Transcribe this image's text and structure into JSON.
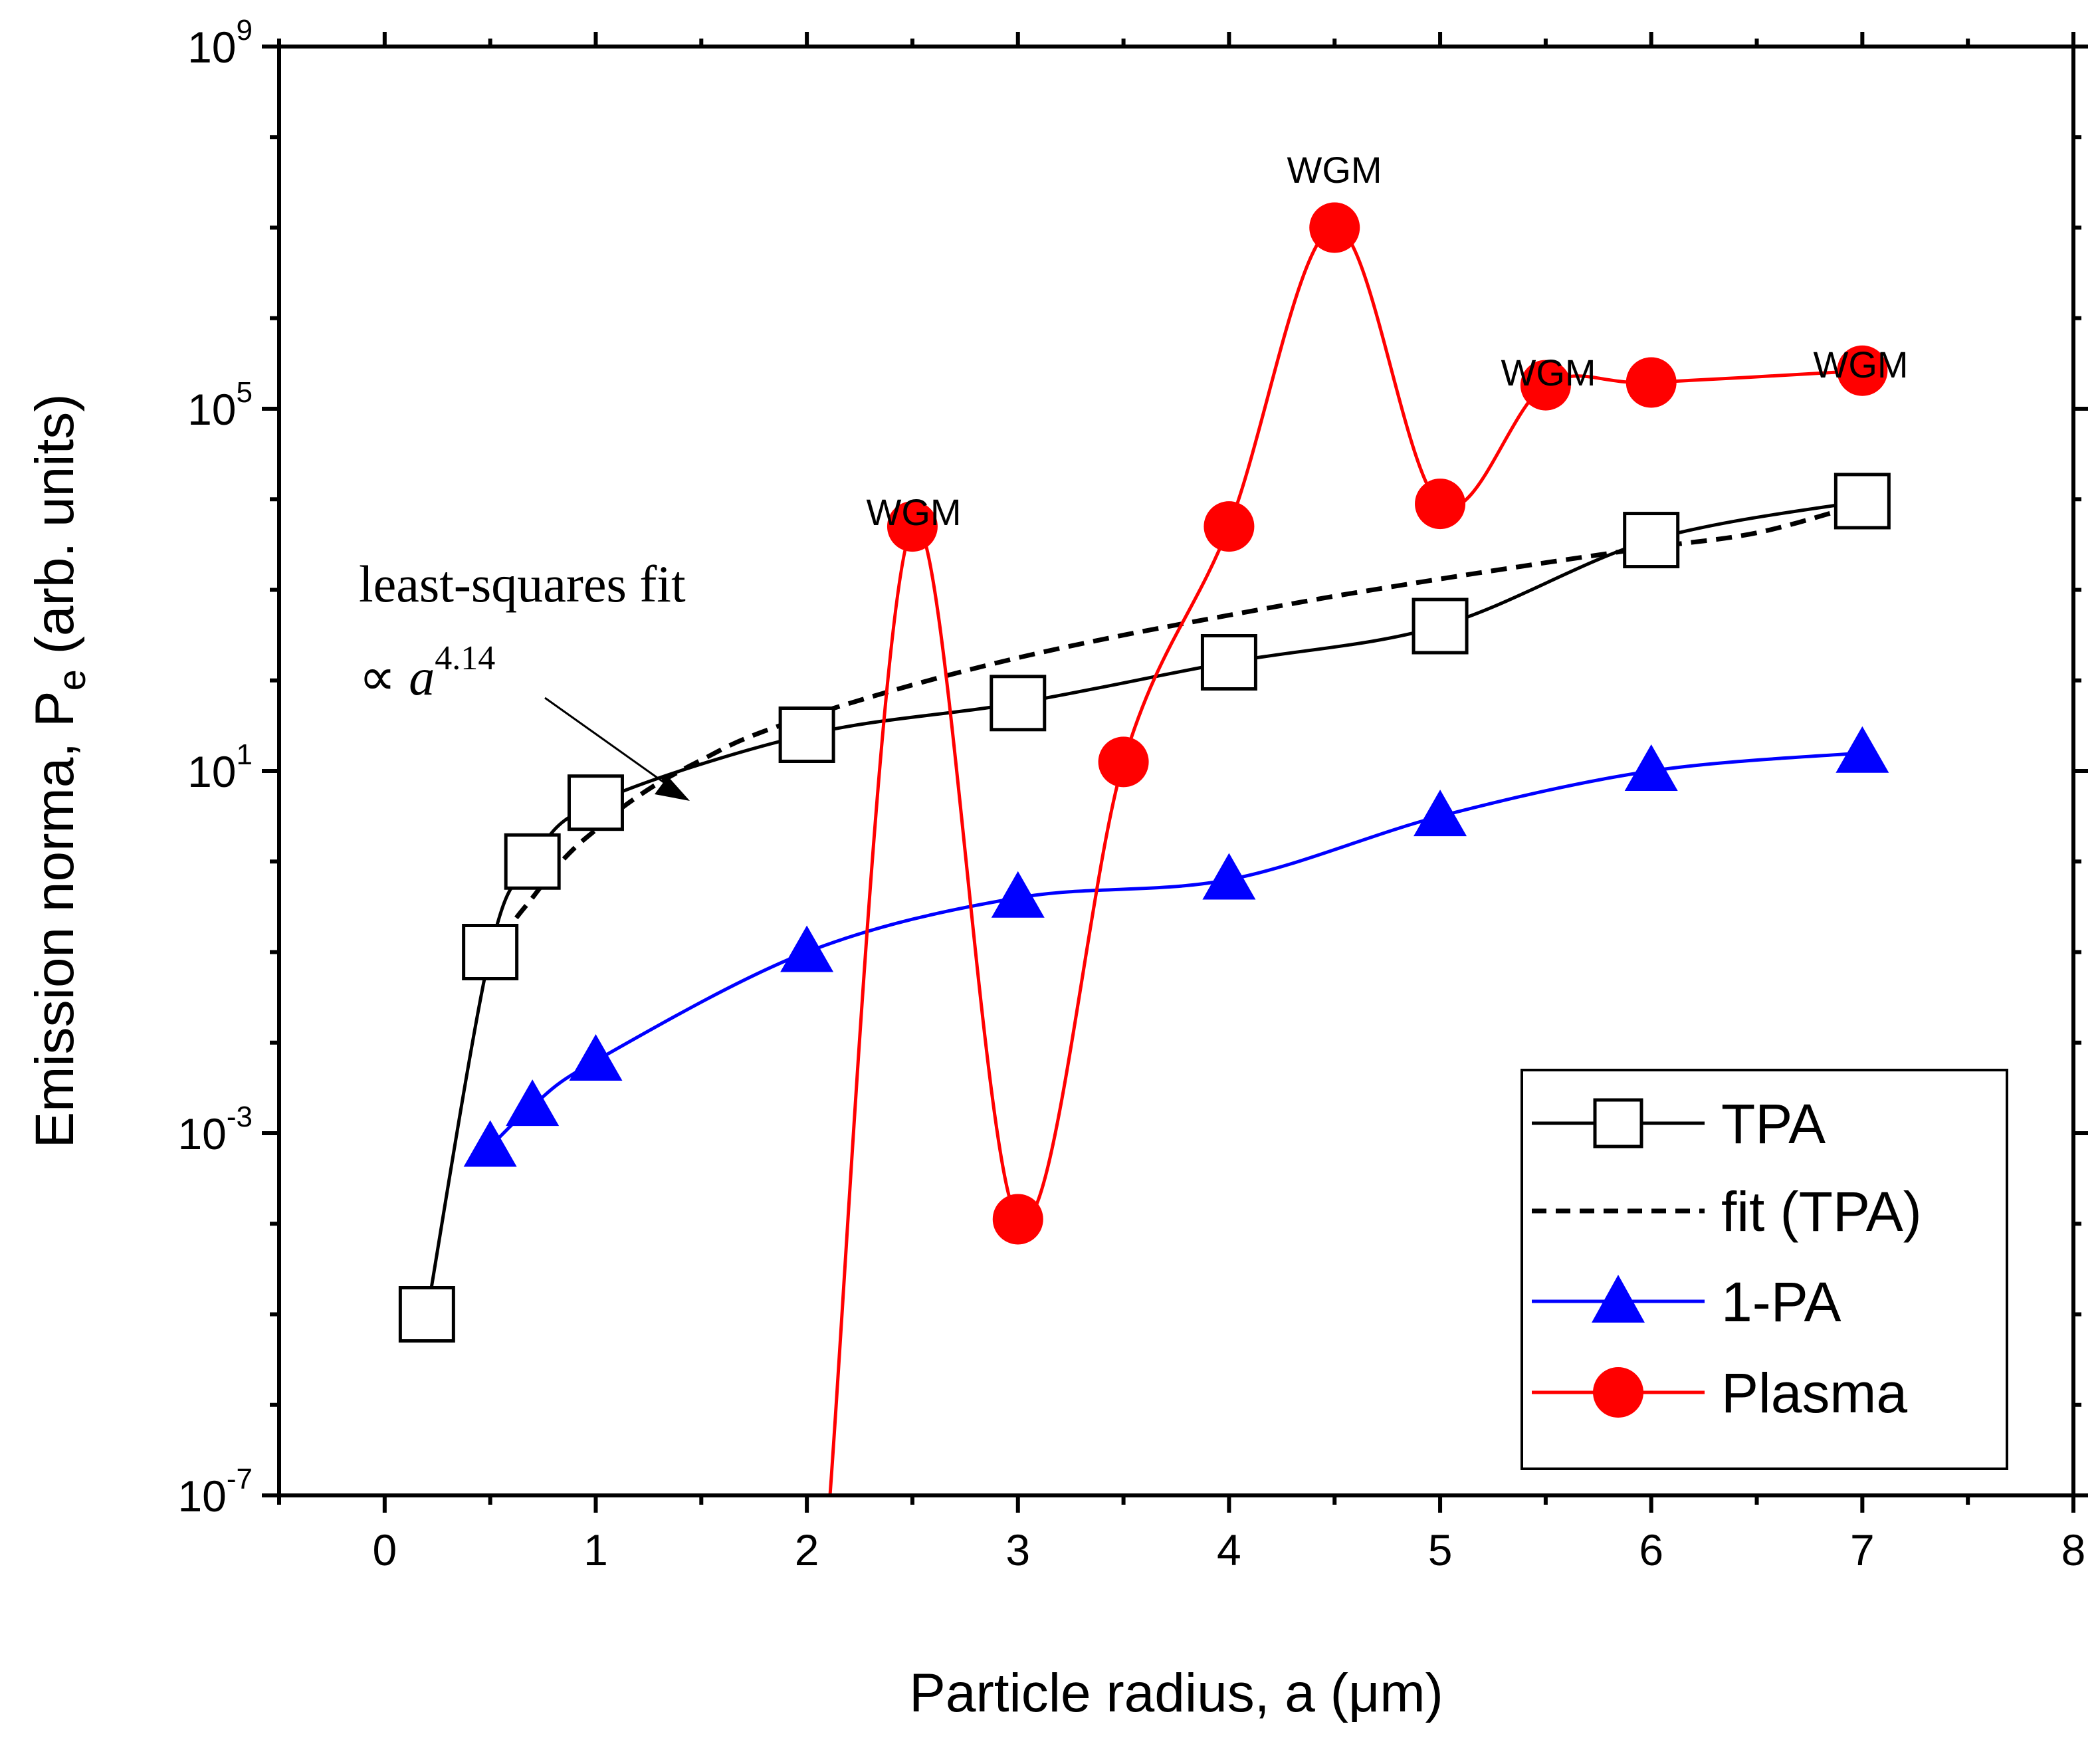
{
  "chart_data": {
    "type": "line",
    "title": "",
    "xlabel": "Particle radius, a (μm)",
    "ylabel_parts": {
      "main": "Emission norma, P",
      "subscript": "e",
      "tail": " (arb. units)"
    },
    "xlim": [
      -0.5,
      8
    ],
    "ylim_log10": [
      -7,
      9
    ],
    "y_scale": "log10",
    "x_ticks": [
      0,
      1,
      2,
      3,
      4,
      5,
      6,
      7,
      8
    ],
    "x_tick_labels": [
      "0",
      "1",
      "2",
      "3",
      "4",
      "5",
      "6",
      "7",
      "8"
    ],
    "y_ticks": [
      {
        "exp": -7,
        "base": "10",
        "power": "-7"
      },
      {
        "exp": -3,
        "base": "10",
        "power": "-3"
      },
      {
        "exp": 1,
        "base": "10",
        "power": "1"
      },
      {
        "exp": 5,
        "base": "10",
        "power": "5"
      },
      {
        "exp": 9,
        "base": "10",
        "power": "9"
      }
    ],
    "legend_position": "bottom-right",
    "series": [
      {
        "name": "TPA",
        "color": "#000000",
        "marker": "open-square",
        "dash": "solid",
        "x": [
          0.2,
          0.5,
          0.7,
          1.0,
          2.0,
          3.0,
          4.0,
          5.0,
          6.0,
          7.0
        ],
        "log10_y": [
          -5.0,
          -1.0,
          0.0,
          0.65,
          1.4,
          1.75,
          2.2,
          2.6,
          3.55,
          3.98
        ]
      },
      {
        "name": "fit (TPA)",
        "color": "#000000",
        "marker": "none",
        "dash": "dashed",
        "x": [
          0.5,
          0.6,
          0.7,
          0.8,
          0.9,
          1.0,
          1.1,
          1.2,
          1.3,
          1.4,
          1.5,
          1.7,
          2.0,
          2.5,
          3.0,
          3.5,
          4.0,
          4.5,
          5.0,
          5.5,
          6.0,
          6.5,
          7.0
        ],
        "log10_y": [
          -1.1,
          -0.7,
          -0.4,
          -0.1,
          0.15,
          0.35,
          0.55,
          0.72,
          0.87,
          1.0,
          1.12,
          1.35,
          1.6,
          1.95,
          2.25,
          2.5,
          2.72,
          2.93,
          3.12,
          3.3,
          3.47,
          3.63,
          3.95
        ]
      },
      {
        "name": "1-PA",
        "color": "#0000ff",
        "marker": "filled-triangle",
        "dash": "solid",
        "x": [
          0.5,
          0.7,
          1.0,
          2.0,
          3.0,
          4.0,
          5.0,
          6.0,
          7.0
        ],
        "log10_y": [
          -3.15,
          -2.7,
          -2.2,
          -1.0,
          -0.4,
          -0.2,
          0.5,
          1.0,
          1.2
        ]
      },
      {
        "name": "Plasma",
        "color": "#ff0000",
        "marker": "filled-circle",
        "dash": "solid",
        "x": [
          2.5,
          3.0,
          3.5,
          4.0,
          4.5,
          5.0,
          5.5,
          6.0,
          7.0
        ],
        "log10_y": [
          3.7,
          -3.95,
          1.1,
          3.7,
          7.0,
          3.95,
          5.26,
          5.29,
          5.42
        ]
      }
    ],
    "plasma_curve_start": {
      "x": 2.1,
      "log10_y": -7.0
    },
    "annotations": {
      "wgm": [
        {
          "text": "WGM",
          "x": 2.5,
          "log10_y": 6.8
        },
        {
          "text": "WGM",
          "x": 4.5,
          "log10_y": 9.0
        },
        {
          "text": "WGM",
          "x": 5.5,
          "log10_y": 6.8
        },
        {
          "text": "WGM",
          "x": 6.6,
          "log10_y": 6.9
        }
      ],
      "fit_label": "least-squares fit",
      "fit_prop": "∝ ",
      "fit_var": "a",
      "fit_exp": "4.14"
    }
  }
}
